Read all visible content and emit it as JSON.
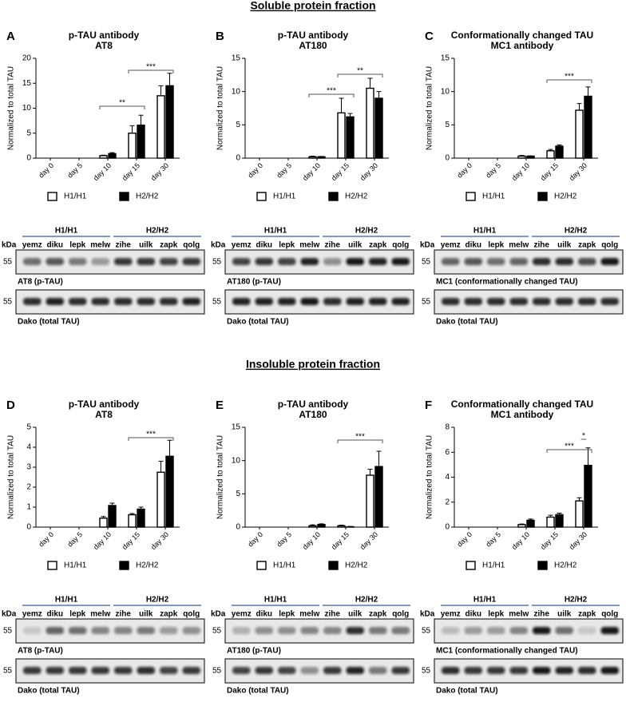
{
  "headings": [
    "Soluble protein fraction",
    "Insoluble protein fraction"
  ],
  "chart_data": [
    {
      "type": "bar",
      "panel": "A",
      "title": [
        "p-TAU antibody",
        "AT8"
      ],
      "ylabel": "Normalized to total TAU",
      "categories": [
        "day 0",
        "day 5",
        "day 10",
        "day 15",
        "day 30"
      ],
      "series": [
        {
          "name": "H1/H1",
          "color": "#ffffff",
          "values": [
            0,
            0,
            0.5,
            5,
            12.5
          ],
          "errors": [
            0,
            0,
            0.1,
            1.5,
            2
          ]
        },
        {
          "name": "H2/H2",
          "color": "#000000",
          "values": [
            0,
            0,
            0.9,
            6.6,
            14.5
          ],
          "errors": [
            0,
            0,
            0.2,
            2,
            2.5
          ]
        }
      ],
      "ylim": [
        0,
        20
      ],
      "yticks": [
        0,
        5,
        10,
        15,
        20
      ],
      "annotations": [
        "**",
        "***"
      ],
      "blot": {
        "groups": [
          "H1/H1",
          "H2/H2"
        ],
        "lanes": [
          "yemz",
          "diku",
          "lepk",
          "melw",
          "zihe",
          "uilk",
          "zapk",
          "qolg"
        ],
        "unit": "kDa",
        "marker": "55",
        "labels": [
          "AT8 (p-TAU)",
          "Dako (total TAU)"
        ]
      }
    },
    {
      "type": "bar",
      "panel": "B",
      "title": [
        "p-TAU antibody",
        "AT180"
      ],
      "ylabel": "Normalized to total TAU",
      "categories": [
        "day 0",
        "day 5",
        "day 10",
        "day 15",
        "day 30"
      ],
      "series": [
        {
          "name": "H1/H1",
          "color": "#ffffff",
          "values": [
            0,
            0,
            0.2,
            6.8,
            10.5
          ],
          "errors": [
            0,
            0,
            0.1,
            2.2,
            1.5
          ]
        },
        {
          "name": "H2/H2",
          "color": "#000000",
          "values": [
            0,
            0,
            0.2,
            6.2,
            9
          ],
          "errors": [
            0,
            0,
            0.05,
            0.5,
            1
          ]
        }
      ],
      "ylim": [
        0,
        15
      ],
      "yticks": [
        0,
        5,
        10,
        15
      ],
      "annotations": [
        "***",
        "**"
      ],
      "blot": {
        "groups": [
          "H1/H1",
          "H2/H2"
        ],
        "lanes": [
          "yemz",
          "diku",
          "lepk",
          "melw",
          "zihe",
          "uilk",
          "zapk",
          "qolg"
        ],
        "unit": "kDa",
        "marker": "55",
        "labels": [
          "AT180 (p-TAU)",
          "Dako (total TAU)"
        ]
      }
    },
    {
      "type": "bar",
      "panel": "C",
      "title": [
        "Conformationally changed TAU",
        "MC1 antibody"
      ],
      "ylabel": "Normalized to total TAU",
      "categories": [
        "day 0",
        "day 5",
        "day 10",
        "day 15",
        "day 30"
      ],
      "series": [
        {
          "name": "H1/H1",
          "color": "#ffffff",
          "values": [
            0,
            0,
            0.3,
            1.1,
            7.2
          ],
          "errors": [
            0,
            0,
            0.1,
            0.2,
            1
          ]
        },
        {
          "name": "H2/H2",
          "color": "#000000",
          "values": [
            0,
            0,
            0.3,
            1.8,
            9.3
          ],
          "errors": [
            0,
            0,
            0.05,
            0.2,
            1.4
          ]
        }
      ],
      "ylim": [
        0,
        15
      ],
      "yticks": [
        0,
        5,
        10,
        15
      ],
      "annotations": [
        "***"
      ],
      "blot": {
        "groups": [
          "H1/H1",
          "H2/H2"
        ],
        "lanes": [
          "yemz",
          "diku",
          "lepk",
          "melw",
          "zihe",
          "uilk",
          "zapk",
          "qolg"
        ],
        "unit": "kDa",
        "marker": "55",
        "labels": [
          "MC1 (conformationally changed TAU)",
          "Dako (total TAU)"
        ]
      }
    },
    {
      "type": "bar",
      "panel": "D",
      "title": [
        "p-TAU antibody",
        "AT8"
      ],
      "ylabel": "Normalized to total TAU",
      "categories": [
        "day 0",
        "day 5",
        "day 10",
        "day 15",
        "day 30"
      ],
      "series": [
        {
          "name": "H1/H1",
          "color": "#ffffff",
          "values": [
            0,
            0,
            0.45,
            0.62,
            2.75
          ],
          "errors": [
            0,
            0,
            0.08,
            0.06,
            0.55
          ]
        },
        {
          "name": "H2/H2",
          "color": "#000000",
          "values": [
            0,
            0,
            1.08,
            0.9,
            3.55
          ],
          "errors": [
            0,
            0,
            0.12,
            0.1,
            0.8
          ]
        }
      ],
      "ylim": [
        0,
        5
      ],
      "yticks": [
        0,
        1,
        2,
        3,
        4,
        5
      ],
      "annotations": [
        "***"
      ],
      "blot": {
        "groups": [
          "H1/H1",
          "H2/H2"
        ],
        "lanes": [
          "yemz",
          "diku",
          "lepk",
          "melw",
          "zihe",
          "uilk",
          "zapk",
          "qolg"
        ],
        "unit": "kDa",
        "marker": "55",
        "labels": [
          "AT8 (p-TAU)",
          "Dako (total TAU)"
        ]
      }
    },
    {
      "type": "bar",
      "panel": "E",
      "title": [
        "p-TAU antibody",
        "AT180"
      ],
      "ylabel": "Normalized to total TAU",
      "categories": [
        "day 0",
        "day 5",
        "day 10",
        "day 15",
        "day 30"
      ],
      "series": [
        {
          "name": "H1/H1",
          "color": "#ffffff",
          "values": [
            0,
            0,
            0.2,
            0.2,
            7.8
          ],
          "errors": [
            0,
            0,
            0.15,
            0.1,
            0.9
          ]
        },
        {
          "name": "H2/H2",
          "color": "#000000",
          "values": [
            0,
            0,
            0.4,
            0.05,
            9.1
          ],
          "errors": [
            0,
            0,
            0.1,
            0.05,
            2.3
          ]
        }
      ],
      "ylim": [
        0,
        15
      ],
      "yticks": [
        0,
        5,
        10,
        15
      ],
      "annotations": [
        "***"
      ],
      "blot": {
        "groups": [
          "H1/H1",
          "H2/H2"
        ],
        "lanes": [
          "yemz",
          "diku",
          "lepk",
          "melw",
          "zihe",
          "uilk",
          "zapk",
          "qolg"
        ],
        "unit": "kDa",
        "marker": "55",
        "labels": [
          "AT180 (p-TAU)",
          "Dako (total TAU)"
        ]
      }
    },
    {
      "type": "bar",
      "panel": "F",
      "title": [
        "Conformationally changed TAU",
        "MC1 antibody"
      ],
      "ylabel": "Normalized to total TAU",
      "categories": [
        "day 0",
        "day 5",
        "day 10",
        "day 15",
        "day 30"
      ],
      "series": [
        {
          "name": "H1/H1",
          "color": "#ffffff",
          "values": [
            0,
            0,
            0.2,
            0.8,
            2.1
          ],
          "errors": [
            0,
            0,
            0.05,
            0.15,
            0.25
          ]
        },
        {
          "name": "H2/H2",
          "color": "#000000",
          "values": [
            0,
            0,
            0.55,
            1.0,
            4.95
          ],
          "errors": [
            0,
            0,
            0.1,
            0.12,
            1.4
          ]
        }
      ],
      "ylim": [
        0,
        8
      ],
      "yticks": [
        0,
        2,
        4,
        6,
        8
      ],
      "annotations": [
        "***",
        "*"
      ],
      "blot": {
        "groups": [
          "H1/H1",
          "H2/H2"
        ],
        "lanes": [
          "yemz",
          "diku",
          "lepk",
          "melw",
          "zihe",
          "uilk",
          "zapk",
          "qolg"
        ],
        "unit": "kDa",
        "marker": "55",
        "labels": [
          "MC1 (conformationally changed TAU)",
          "Dako (total TAU)"
        ]
      }
    }
  ]
}
